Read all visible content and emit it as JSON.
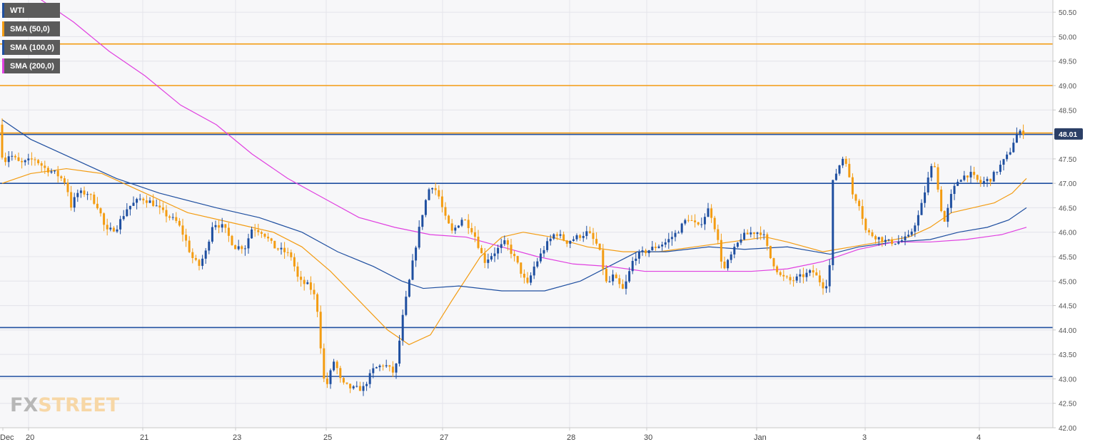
{
  "legend": [
    {
      "label": "WTI",
      "color": "#1f4fa0"
    },
    {
      "label": "SMA (50,0)",
      "color": "#f39c12"
    },
    {
      "label": "SMA (100,0)",
      "color": "#1f4fa0"
    },
    {
      "label": "SMA (200,0)",
      "color": "#e040e0"
    }
  ],
  "logo": {
    "fx": "FX",
    "street": "STREET"
  },
  "chart_data": {
    "type": "candlestick",
    "symbol": "WTI",
    "ylim": [
      42.0,
      50.75
    ],
    "y_ticks": [
      "42.00",
      "42.50",
      "43.00",
      "43.50",
      "44.00",
      "44.50",
      "45.00",
      "45.50",
      "46.00",
      "46.50",
      "47.00",
      "47.50",
      "48.00",
      "48.50",
      "49.00",
      "49.50",
      "50.00",
      "50.50"
    ],
    "x_ticks": [
      "Dec",
      "20",
      "21",
      "23",
      "25",
      "27",
      "28",
      "30",
      "Jan",
      "3",
      "4"
    ],
    "last_price": "48.01",
    "horizontal_levels": [
      {
        "value": 49.85,
        "color": "#f39c12"
      },
      {
        "value": 49.0,
        "color": "#f39c12"
      },
      {
        "value": 48.03,
        "color": "#f39c12"
      },
      {
        "value": 48.0,
        "color": "#1f4fa0"
      },
      {
        "value": 47.0,
        "color": "#1f4fa0"
      },
      {
        "value": 44.05,
        "color": "#1f4fa0"
      },
      {
        "value": 43.05,
        "color": "#1f4fa0"
      }
    ],
    "price_path": [
      [
        0,
        48.2
      ],
      [
        6,
        47.4
      ],
      [
        15,
        47.6
      ],
      [
        30,
        47.4
      ],
      [
        50,
        47.5
      ],
      [
        65,
        47.3
      ],
      [
        80,
        47.2
      ],
      [
        95,
        47.0
      ],
      [
        100,
        46.5
      ],
      [
        110,
        46.8
      ],
      [
        125,
        46.8
      ],
      [
        140,
        46.5
      ],
      [
        150,
        46.0
      ],
      [
        165,
        46.1
      ],
      [
        180,
        46.5
      ],
      [
        200,
        46.7
      ],
      [
        215,
        46.6
      ],
      [
        230,
        46.4
      ],
      [
        250,
        46.2
      ],
      [
        260,
        45.9
      ],
      [
        270,
        45.5
      ],
      [
        280,
        45.3
      ],
      [
        290,
        45.6
      ],
      [
        300,
        46.2
      ],
      [
        315,
        46.1
      ],
      [
        330,
        45.7
      ],
      [
        345,
        45.7
      ],
      [
        355,
        46.1
      ],
      [
        370,
        46.0
      ],
      [
        385,
        45.7
      ],
      [
        400,
        45.6
      ],
      [
        410,
        45.5
      ],
      [
        420,
        45.0
      ],
      [
        435,
        44.9
      ],
      [
        445,
        44.6
      ],
      [
        455,
        43.0
      ],
      [
        460,
        42.9
      ],
      [
        470,
        43.4
      ],
      [
        480,
        42.9
      ],
      [
        495,
        42.8
      ],
      [
        510,
        42.8
      ],
      [
        525,
        43.2
      ],
      [
        540,
        43.3
      ],
      [
        555,
        43.1
      ],
      [
        565,
        44.2
      ],
      [
        575,
        45.0
      ],
      [
        585,
        45.8
      ],
      [
        595,
        46.5
      ],
      [
        605,
        47.0
      ],
      [
        615,
        46.8
      ],
      [
        625,
        46.3
      ],
      [
        635,
        46.0
      ],
      [
        650,
        46.3
      ],
      [
        665,
        46.0
      ],
      [
        680,
        45.4
      ],
      [
        695,
        45.6
      ],
      [
        710,
        45.8
      ],
      [
        725,
        45.4
      ],
      [
        740,
        44.9
      ],
      [
        750,
        45.3
      ],
      [
        765,
        45.7
      ],
      [
        780,
        46.0
      ],
      [
        795,
        45.8
      ],
      [
        810,
        45.9
      ],
      [
        825,
        46.0
      ],
      [
        840,
        45.7
      ],
      [
        852,
        44.9
      ],
      [
        860,
        45.1
      ],
      [
        875,
        44.8
      ],
      [
        890,
        45.5
      ],
      [
        905,
        45.6
      ],
      [
        920,
        45.7
      ],
      [
        935,
        45.8
      ],
      [
        950,
        46.0
      ],
      [
        965,
        46.3
      ],
      [
        980,
        46.1
      ],
      [
        995,
        46.5
      ],
      [
        1005,
        46.0
      ],
      [
        1015,
        45.2
      ],
      [
        1025,
        45.5
      ],
      [
        1040,
        45.9
      ],
      [
        1055,
        46.0
      ],
      [
        1070,
        46.0
      ],
      [
        1080,
        45.5
      ],
      [
        1095,
        45.1
      ],
      [
        1110,
        45.0
      ],
      [
        1125,
        45.1
      ],
      [
        1140,
        45.2
      ],
      [
        1155,
        44.9
      ],
      [
        1163,
        45.0
      ],
      [
        1168,
        47.0
      ],
      [
        1175,
        47.3
      ],
      [
        1185,
        47.6
      ],
      [
        1195,
        46.8
      ],
      [
        1205,
        46.6
      ],
      [
        1215,
        46.0
      ],
      [
        1230,
        45.9
      ],
      [
        1245,
        45.8
      ],
      [
        1260,
        45.8
      ],
      [
        1275,
        45.9
      ],
      [
        1290,
        46.4
      ],
      [
        1300,
        47.0
      ],
      [
        1310,
        47.5
      ],
      [
        1318,
        46.6
      ],
      [
        1325,
        46.2
      ],
      [
        1335,
        46.8
      ],
      [
        1345,
        47.1
      ],
      [
        1360,
        47.2
      ],
      [
        1375,
        47.0
      ],
      [
        1390,
        47.1
      ],
      [
        1405,
        47.4
      ],
      [
        1415,
        47.6
      ],
      [
        1425,
        48.0
      ],
      [
        1435,
        48.05
      ]
    ],
    "sma_50": [
      [
        0,
        47.0
      ],
      [
        40,
        47.2
      ],
      [
        90,
        47.3
      ],
      [
        140,
        47.2
      ],
      [
        200,
        46.8
      ],
      [
        260,
        46.4
      ],
      [
        320,
        46.2
      ],
      [
        380,
        46.0
      ],
      [
        420,
        45.7
      ],
      [
        460,
        45.2
      ],
      [
        500,
        44.6
      ],
      [
        540,
        44.0
      ],
      [
        570,
        43.7
      ],
      [
        600,
        43.9
      ],
      [
        630,
        44.6
      ],
      [
        670,
        45.5
      ],
      [
        700,
        45.9
      ],
      [
        730,
        46.0
      ],
      [
        770,
        45.9
      ],
      [
        820,
        45.7
      ],
      [
        870,
        45.6
      ],
      [
        920,
        45.6
      ],
      [
        970,
        45.7
      ],
      [
        1020,
        45.8
      ],
      [
        1070,
        45.9
      ],
      [
        1100,
        45.8
      ],
      [
        1150,
        45.6
      ],
      [
        1190,
        45.7
      ],
      [
        1230,
        45.8
      ],
      [
        1270,
        45.9
      ],
      [
        1300,
        46.1
      ],
      [
        1330,
        46.4
      ],
      [
        1360,
        46.5
      ],
      [
        1390,
        46.6
      ],
      [
        1415,
        46.8
      ],
      [
        1435,
        47.1
      ]
    ],
    "sma_100": [
      [
        0,
        48.3
      ],
      [
        40,
        47.9
      ],
      [
        100,
        47.5
      ],
      [
        160,
        47.1
      ],
      [
        220,
        46.8
      ],
      [
        300,
        46.5
      ],
      [
        360,
        46.3
      ],
      [
        420,
        46.0
      ],
      [
        470,
        45.6
      ],
      [
        520,
        45.3
      ],
      [
        560,
        45.0
      ],
      [
        590,
        44.85
      ],
      [
        640,
        44.9
      ],
      [
        700,
        44.8
      ],
      [
        760,
        44.8
      ],
      [
        810,
        45.0
      ],
      [
        850,
        45.3
      ],
      [
        890,
        45.6
      ],
      [
        930,
        45.6
      ],
      [
        990,
        45.7
      ],
      [
        1040,
        45.65
      ],
      [
        1100,
        45.7
      ],
      [
        1160,
        45.55
      ],
      [
        1200,
        45.7
      ],
      [
        1250,
        45.8
      ],
      [
        1300,
        45.85
      ],
      [
        1340,
        46.0
      ],
      [
        1380,
        46.1
      ],
      [
        1410,
        46.25
      ],
      [
        1435,
        46.5
      ]
    ],
    "sma_200": [
      [
        0,
        51.3
      ],
      [
        50,
        50.8
      ],
      [
        100,
        50.3
      ],
      [
        150,
        49.7
      ],
      [
        200,
        49.2
      ],
      [
        250,
        48.6
      ],
      [
        300,
        48.2
      ],
      [
        350,
        47.6
      ],
      [
        400,
        47.1
      ],
      [
        450,
        46.7
      ],
      [
        500,
        46.3
      ],
      [
        550,
        46.1
      ],
      [
        600,
        45.95
      ],
      [
        650,
        45.9
      ],
      [
        700,
        45.7
      ],
      [
        750,
        45.5
      ],
      [
        800,
        45.35
      ],
      [
        850,
        45.3
      ],
      [
        900,
        45.2
      ],
      [
        950,
        45.2
      ],
      [
        1000,
        45.2
      ],
      [
        1050,
        45.2
      ],
      [
        1100,
        45.25
      ],
      [
        1150,
        45.4
      ],
      [
        1200,
        45.65
      ],
      [
        1250,
        45.8
      ],
      [
        1300,
        45.8
      ],
      [
        1350,
        45.85
      ],
      [
        1400,
        45.95
      ],
      [
        1435,
        46.1
      ]
    ]
  }
}
